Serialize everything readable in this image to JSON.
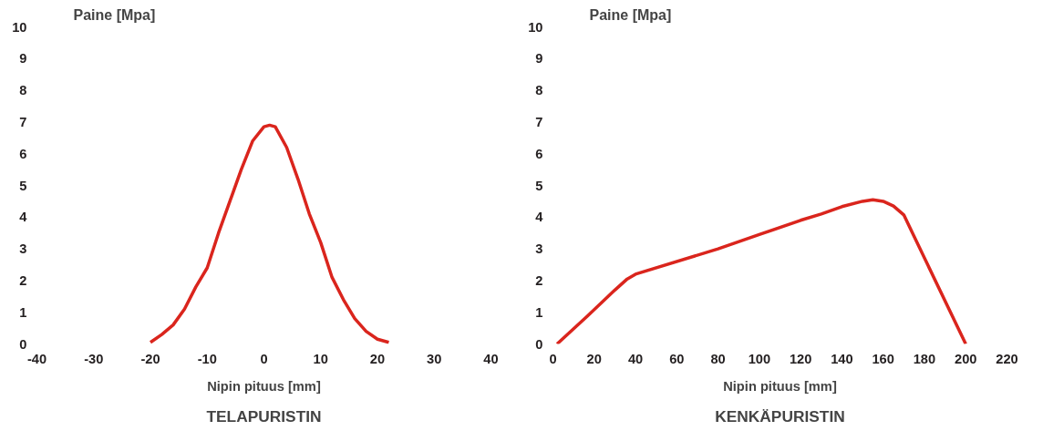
{
  "chart_data": [
    {
      "type": "line",
      "title": "TELAPURISTIN",
      "xlabel": "Nipin pituus [mm]",
      "ylabel": "Paine [Mpa]",
      "x": [
        -20,
        -18,
        -16,
        -14,
        -12,
        -10,
        -8,
        -6,
        -4,
        -2,
        0,
        1,
        2,
        4,
        6,
        8,
        10,
        12,
        14,
        16,
        18,
        20,
        22
      ],
      "series": [
        {
          "color": "#da251d",
          "values": [
            0.05,
            0.3,
            0.6,
            1.1,
            1.8,
            2.4,
            3.5,
            4.5,
            5.5,
            6.4,
            6.85,
            6.9,
            6.85,
            6.2,
            5.2,
            4.1,
            3.2,
            2.1,
            1.4,
            0.8,
            0.4,
            0.15,
            0.05
          ]
        }
      ],
      "xlim": [
        -40,
        40
      ],
      "ylim": [
        0,
        10
      ],
      "xticks": [
        -40,
        -30,
        -20,
        -10,
        0,
        10,
        20,
        30,
        40
      ],
      "yticks": [
        0,
        1,
        2,
        3,
        4,
        5,
        6,
        7,
        8,
        9,
        10
      ],
      "grid": false,
      "line_style": "solid",
      "marker": "none"
    },
    {
      "type": "line",
      "title": "KENKÄPURISTIN",
      "xlabel": "Nipin pituus [mm]",
      "ylabel": "Paine [Mpa]",
      "x": [
        2,
        17,
        30,
        36,
        40,
        80,
        100,
        120,
        130,
        140,
        150,
        155,
        160,
        165,
        170,
        200
      ],
      "series": [
        {
          "color": "#da251d",
          "values": [
            0,
            0.9,
            1.7,
            2.05,
            2.2,
            3.0,
            3.45,
            3.9,
            4.1,
            4.33,
            4.5,
            4.55,
            4.5,
            4.35,
            4.07,
            0
          ]
        }
      ],
      "xlim": [
        0,
        220
      ],
      "ylim": [
        0,
        10
      ],
      "xticks": [
        0,
        20,
        40,
        60,
        80,
        100,
        120,
        140,
        160,
        180,
        200,
        220
      ],
      "yticks": [
        0,
        1,
        2,
        3,
        4,
        5,
        6,
        7,
        8,
        9,
        10
      ],
      "grid": false,
      "line_style": "solid",
      "marker": "none"
    }
  ]
}
